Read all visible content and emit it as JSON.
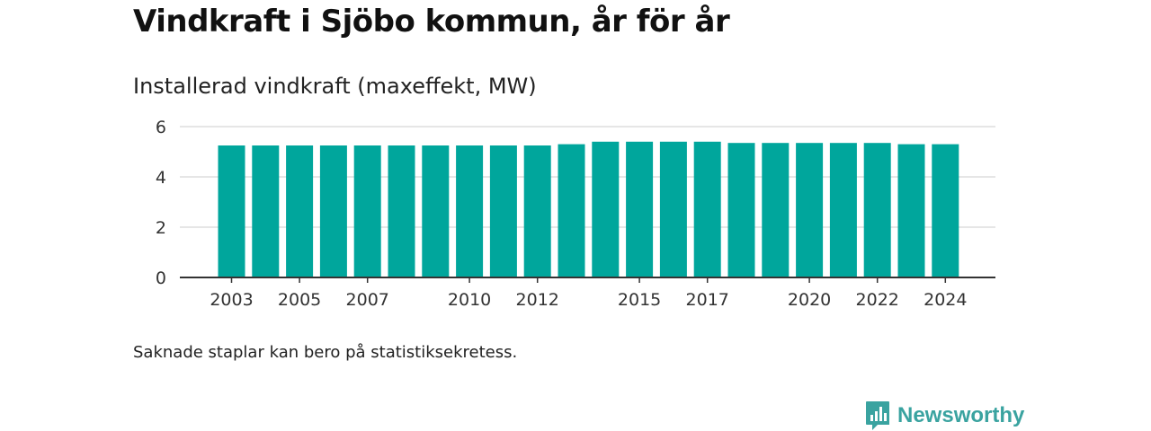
{
  "title": "Vindkraft i Sjöbo kommun, år för år",
  "subtitle": "Installerad vindkraft (maxeffekt, MW)",
  "footnote": "Saknade staplar kan bero på statistiksekretess.",
  "brand": {
    "name": "Newsworthy",
    "logo_icon": "bar-chart-speech-bubble-icon"
  },
  "colors": {
    "bar": "#00a69c",
    "brand": "#3aa3a0",
    "grid": "#dddddd",
    "axis": "#333333"
  },
  "chart_data": {
    "type": "bar",
    "categories": [
      "2003",
      "2004",
      "2005",
      "2006",
      "2007",
      "2008",
      "2009",
      "2010",
      "2011",
      "2012",
      "2013",
      "2014",
      "2015",
      "2016",
      "2017",
      "2018",
      "2019",
      "2020",
      "2021",
      "2022",
      "2023",
      "2024"
    ],
    "values": [
      5.25,
      5.25,
      5.25,
      5.25,
      5.25,
      5.25,
      5.25,
      5.25,
      5.25,
      5.25,
      5.3,
      5.4,
      5.4,
      5.4,
      5.4,
      5.35,
      5.35,
      5.35,
      5.35,
      5.35,
      5.3,
      5.3
    ],
    "xtick_labels": [
      "2003",
      "2005",
      "2007",
      "2010",
      "2012",
      "2015",
      "2017",
      "2020",
      "2022",
      "2024"
    ],
    "yticks": [
      0,
      2,
      4,
      6
    ],
    "ylim": [
      0,
      6
    ],
    "grid": true,
    "xlabel": "",
    "ylabel": ""
  }
}
